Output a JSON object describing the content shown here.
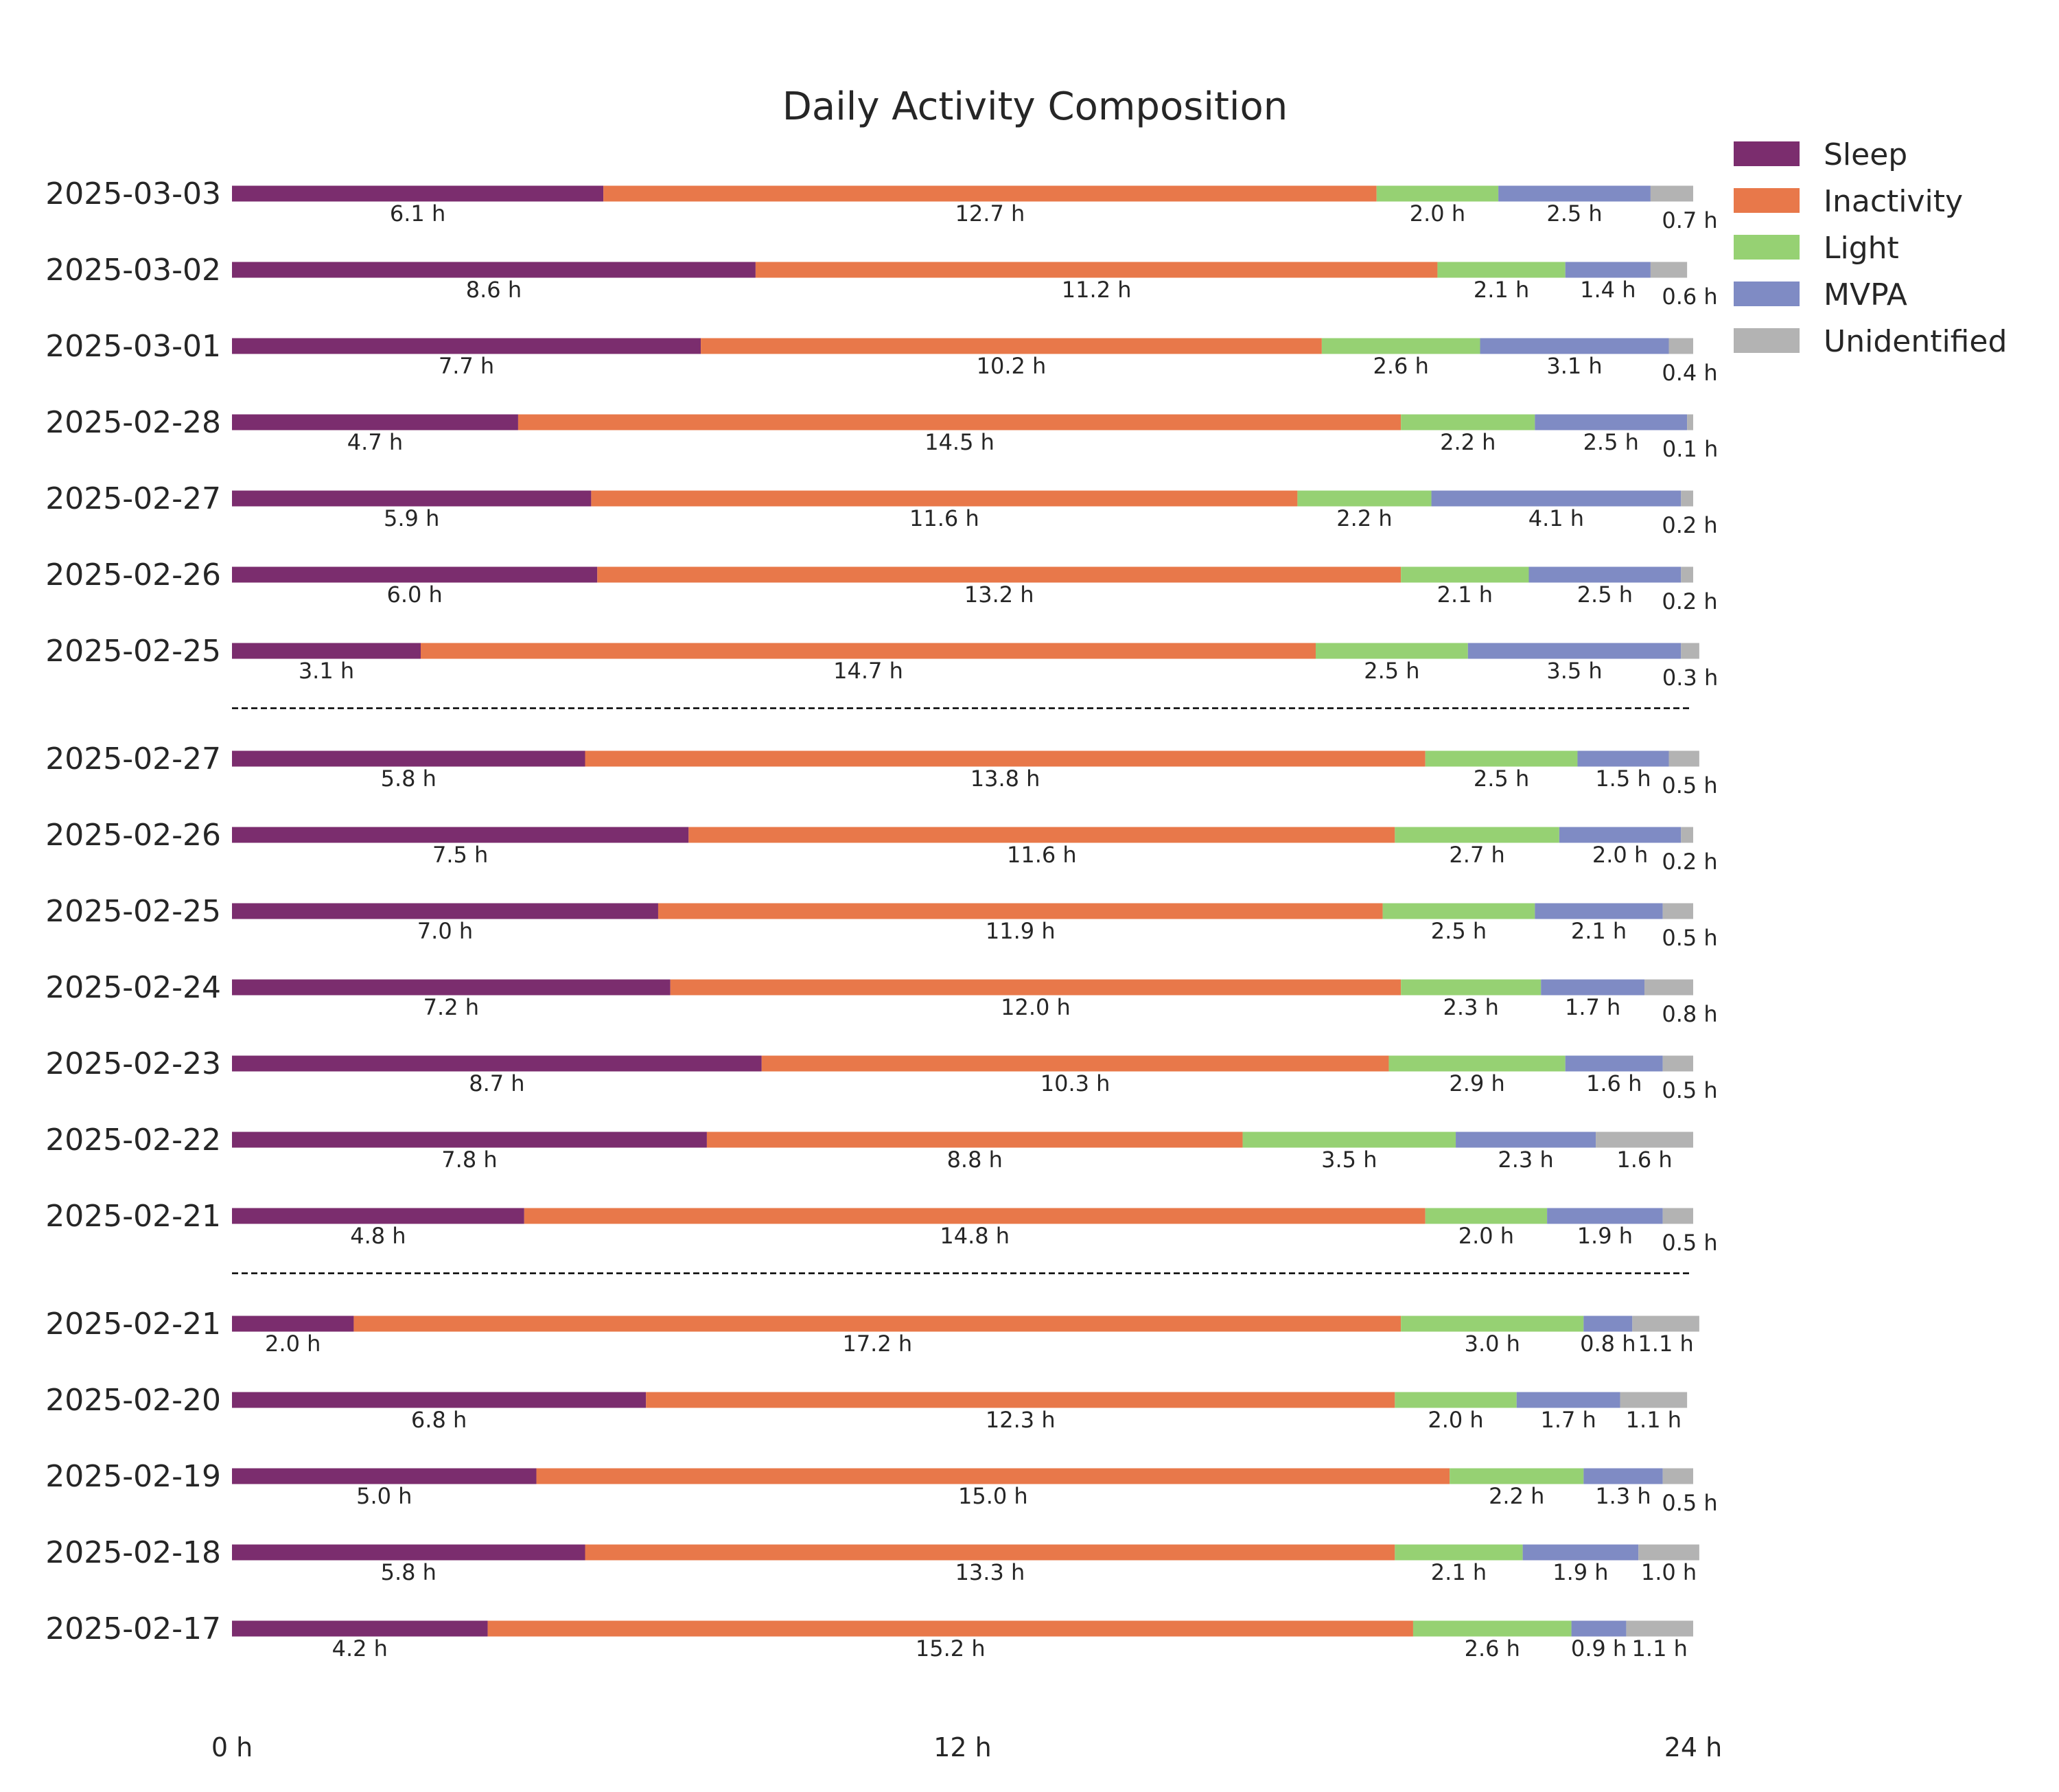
{
  "chart_data": {
    "type": "bar",
    "orientation": "horizontal-stacked",
    "title": "Daily Activity Composition",
    "xlabel": "",
    "ylabel": "",
    "xlim": [
      0,
      24
    ],
    "xticks": [
      "0 h",
      "12 h",
      "24 h"
    ],
    "unit": "h",
    "grid": false,
    "legend_position": "top-right",
    "categories": [
      "Sleep",
      "Inactivity",
      "Light",
      "MVPA",
      "Unidentified"
    ],
    "colors": {
      "Sleep": "#7b2d6e",
      "Inactivity": "#e8784a",
      "Light": "#96d173",
      "MVPA": "#7f8bc4",
      "Unidentified": "#b3b3b3"
    },
    "groups": [
      {
        "rows": [
          {
            "date": "2025-03-03",
            "values": [
              6.1,
              12.7,
              2.0,
              2.5,
              0.7
            ]
          },
          {
            "date": "2025-03-02",
            "values": [
              8.6,
              11.2,
              2.1,
              1.4,
              0.6
            ]
          },
          {
            "date": "2025-03-01",
            "values": [
              7.7,
              10.2,
              2.6,
              3.1,
              0.4
            ]
          },
          {
            "date": "2025-02-28",
            "values": [
              4.7,
              14.5,
              2.2,
              2.5,
              0.1
            ]
          },
          {
            "date": "2025-02-27",
            "values": [
              5.9,
              11.6,
              2.2,
              4.1,
              0.2
            ]
          },
          {
            "date": "2025-02-26",
            "values": [
              6.0,
              13.2,
              2.1,
              2.5,
              0.2
            ]
          },
          {
            "date": "2025-02-25",
            "values": [
              3.1,
              14.7,
              2.5,
              3.5,
              0.3
            ]
          }
        ]
      },
      {
        "rows": [
          {
            "date": "2025-02-27",
            "values": [
              5.8,
              13.8,
              2.5,
              1.5,
              0.5
            ]
          },
          {
            "date": "2025-02-26",
            "values": [
              7.5,
              11.6,
              2.7,
              2.0,
              0.2
            ]
          },
          {
            "date": "2025-02-25",
            "values": [
              7.0,
              11.9,
              2.5,
              2.1,
              0.5
            ]
          },
          {
            "date": "2025-02-24",
            "values": [
              7.2,
              12.0,
              2.3,
              1.7,
              0.8
            ]
          },
          {
            "date": "2025-02-23",
            "values": [
              8.7,
              10.3,
              2.9,
              1.6,
              0.5
            ]
          },
          {
            "date": "2025-02-22",
            "values": [
              7.8,
              8.8,
              3.5,
              2.3,
              1.6
            ]
          },
          {
            "date": "2025-02-21",
            "values": [
              4.8,
              14.8,
              2.0,
              1.9,
              0.5
            ]
          }
        ]
      },
      {
        "rows": [
          {
            "date": "2025-02-21",
            "values": [
              2.0,
              17.2,
              3.0,
              0.8,
              1.1
            ]
          },
          {
            "date": "2025-02-20",
            "values": [
              6.8,
              12.3,
              2.0,
              1.7,
              1.1
            ]
          },
          {
            "date": "2025-02-19",
            "values": [
              5.0,
              15.0,
              2.2,
              1.3,
              0.5
            ]
          },
          {
            "date": "2025-02-18",
            "values": [
              5.8,
              13.3,
              2.1,
              1.9,
              1.0
            ]
          },
          {
            "date": "2025-02-17",
            "values": [
              4.2,
              15.2,
              2.6,
              0.9,
              1.1
            ]
          }
        ]
      }
    ]
  }
}
